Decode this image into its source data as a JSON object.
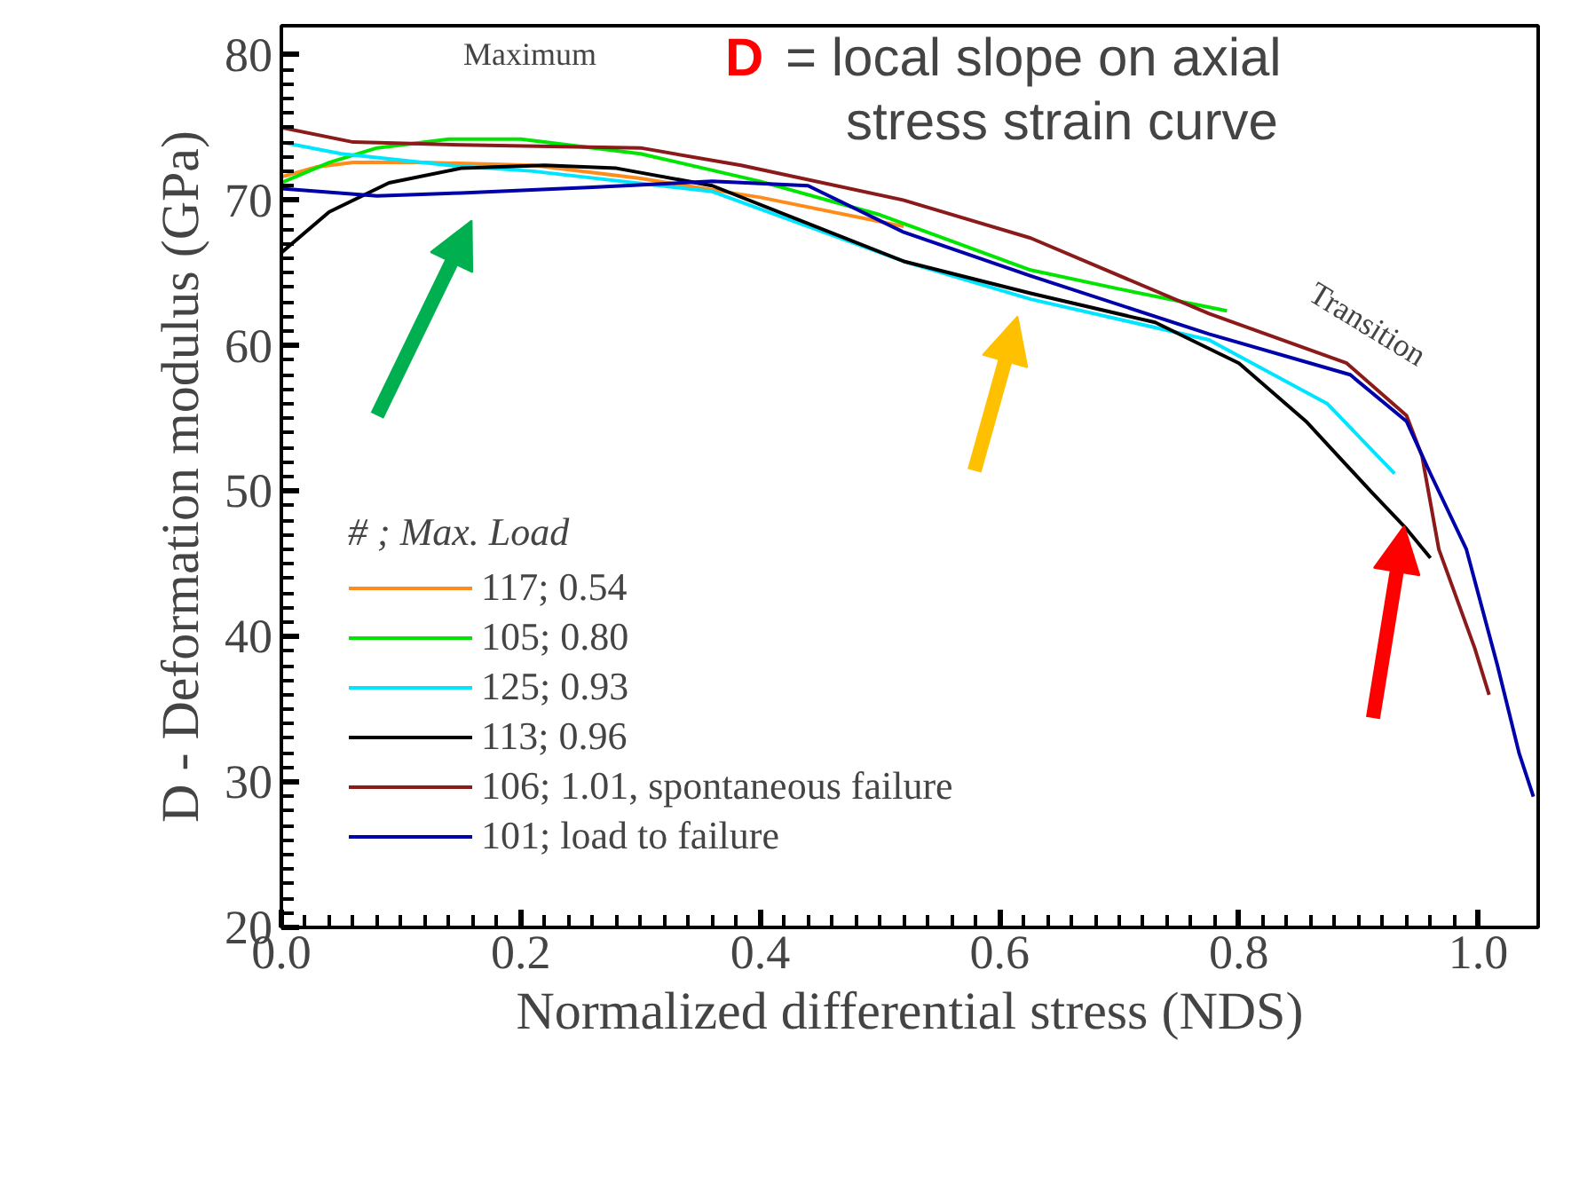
{
  "chart_data": {
    "type": "line",
    "xlabel": "Normalized differential stress (NDS)",
    "ylabel": "D - Deformation modulus (GPa)",
    "legend_title": "# ; Max. Load",
    "xlim": [
      0,
      1.05
    ],
    "ylim": [
      20,
      82
    ],
    "xticks": [
      {
        "value": 0,
        "label": "0.0"
      },
      0.2,
      0.4,
      0.6,
      0.8,
      {
        "value": 1,
        "label": "1.0"
      }
    ],
    "yticks": [
      20,
      30,
      40,
      50,
      60,
      70,
      80
    ],
    "grid": false,
    "legend": "bottom left",
    "marker": "none",
    "line_style": "solid",
    "annotations": [
      "Maximum",
      "Transition",
      "D = local slope on axial\nstress strain curve"
    ],
    "series": [
      {
        "name": "117; 0.54",
        "color": "#ff8c1a",
        "x": [
          0,
          0.03,
          0.06,
          0.12,
          0.21,
          0.3,
          0.4,
          0.52
        ],
        "values": [
          71.6,
          72.3,
          72.6,
          72.6,
          72.4,
          71.5,
          70.2,
          68.2
        ]
      },
      {
        "name": "105; 0.80",
        "color": "#00e600",
        "x": [
          0,
          0.04,
          0.08,
          0.14,
          0.2,
          0.3,
          0.4,
          0.5,
          0.626,
          0.7,
          0.79
        ],
        "values": [
          71.2,
          72.6,
          73.6,
          74.2,
          74.2,
          73.2,
          71.3,
          69.0,
          65.2,
          63.9,
          62.4
        ]
      },
      {
        "name": "125; 0.93",
        "color": "#00e5ff",
        "x": [
          0,
          0.05,
          0.14,
          0.21,
          0.36,
          0.52,
          0.626,
          0.775,
          0.874,
          0.93
        ],
        "values": [
          74.0,
          73.2,
          72.4,
          72.0,
          70.6,
          65.8,
          63.2,
          60.4,
          56.0,
          51.2
        ]
      },
      {
        "name": "113; 0.96",
        "color": "#000000",
        "x": [
          0,
          0.04,
          0.09,
          0.15,
          0.22,
          0.28,
          0.36,
          0.52,
          0.626,
          0.73,
          0.8,
          0.856,
          0.91,
          0.94,
          0.96
        ],
        "values": [
          66.4,
          69.2,
          71.2,
          72.2,
          72.4,
          72.2,
          71.0,
          65.8,
          63.6,
          61.6,
          58.8,
          54.8,
          50.0,
          47.4,
          45.4
        ]
      },
      {
        "name": "106; 1.01, spontaneous failure",
        "color": "#8b1a1a",
        "x": [
          0,
          0.06,
          0.15,
          0.3,
          0.384,
          0.52,
          0.626,
          0.775,
          0.89,
          0.94,
          0.953,
          0.967,
          0.997,
          1.009
        ],
        "values": [
          75.0,
          74.0,
          73.8,
          73.6,
          72.4,
          70.0,
          67.4,
          62.2,
          58.8,
          55.2,
          52.4,
          46.0,
          39.2,
          36.0
        ]
      },
      {
        "name": "101; load to failure",
        "color": "#0000aa",
        "x": [
          0,
          0.08,
          0.15,
          0.26,
          0.36,
          0.44,
          0.52,
          0.626,
          0.775,
          0.893,
          0.94,
          0.96,
          0.99,
          1.016,
          1.034,
          1.046
        ],
        "values": [
          70.8,
          70.3,
          70.5,
          70.9,
          71.3,
          71.0,
          67.8,
          64.8,
          60.8,
          58.0,
          54.8,
          51.2,
          46.0,
          38.0,
          32.0,
          29.0
        ]
      }
    ]
  }
}
